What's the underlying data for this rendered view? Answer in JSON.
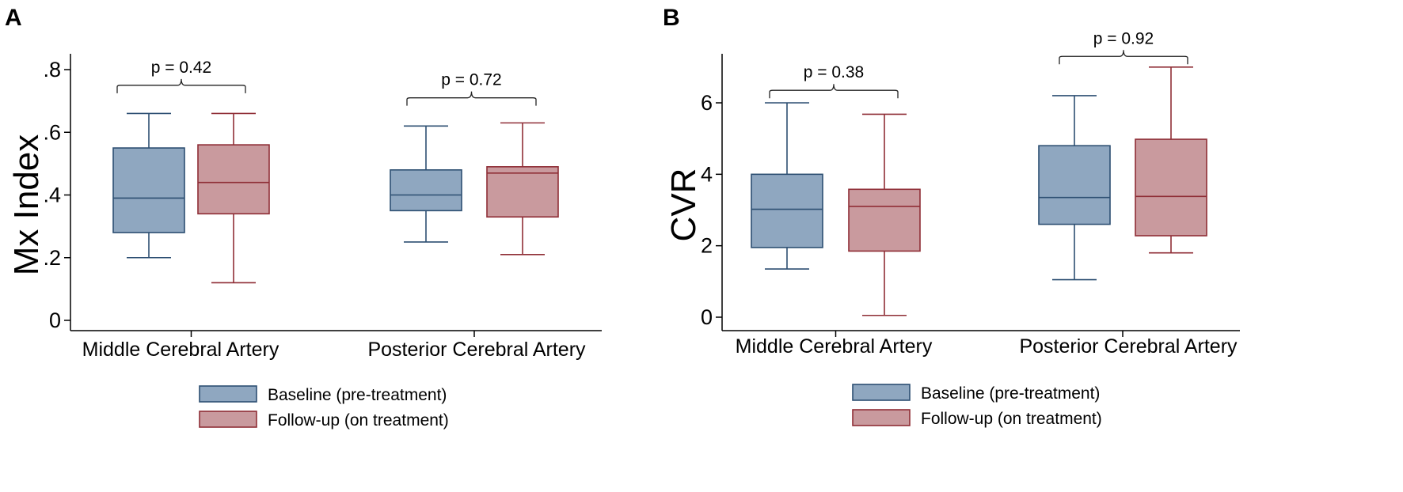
{
  "chart_data": [
    {
      "type": "boxplot",
      "panel_label": "A",
      "title": "",
      "xlabel": "",
      "ylabel": "Mx Index",
      "ylim": [
        0,
        0.85
      ],
      "yticks": [
        0,
        0.2,
        0.4,
        0.6,
        0.8
      ],
      "ytick_labels": [
        "0",
        ".2",
        ".4",
        ".6",
        ".8"
      ],
      "categories": [
        "Middle Cerebral Artery",
        "Posterior Cerebral Artery"
      ],
      "series": [
        {
          "name": "Baseline (pre-treatment)",
          "boxes": [
            {
              "min": 0.2,
              "q1": 0.28,
              "median": 0.39,
              "q3": 0.55,
              "max": 0.66
            },
            {
              "min": 0.25,
              "q1": 0.35,
              "median": 0.4,
              "q3": 0.48,
              "max": 0.62
            }
          ]
        },
        {
          "name": "Follow-up (on treatment)",
          "boxes": [
            {
              "min": 0.12,
              "q1": 0.34,
              "median": 0.44,
              "q3": 0.56,
              "max": 0.66
            },
            {
              "min": 0.21,
              "q1": 0.33,
              "median": 0.47,
              "q3": 0.49,
              "max": 0.63
            }
          ]
        }
      ],
      "annotations": [
        {
          "label": "p = 0.42",
          "category": 0,
          "y": 0.75
        },
        {
          "label": "p = 0.72",
          "category": 1,
          "y": 0.71
        }
      ]
    },
    {
      "type": "boxplot",
      "panel_label": "B",
      "title": "",
      "xlabel": "",
      "ylabel": "CVR",
      "ylim": [
        -0.3,
        7.4
      ],
      "yticks": [
        0,
        2,
        4,
        6
      ],
      "ytick_labels": [
        "0",
        "2",
        "4",
        "6"
      ],
      "categories": [
        "Middle Cerebral Artery",
        "Posterior Cerebral Artery"
      ],
      "series": [
        {
          "name": "Baseline (pre-treatment)",
          "boxes": [
            {
              "min": 1.35,
              "q1": 1.95,
              "median": 3.02,
              "q3": 4.0,
              "max": 6.0
            },
            {
              "min": 1.05,
              "q1": 2.6,
              "median": 3.35,
              "q3": 4.8,
              "max": 6.2
            }
          ]
        },
        {
          "name": "Follow-up (on treatment)",
          "boxes": [
            {
              "min": 0.05,
              "q1": 1.85,
              "median": 3.1,
              "q3": 3.58,
              "max": 5.68
            },
            {
              "min": 1.8,
              "q1": 2.28,
              "median": 3.38,
              "q3": 4.98,
              "max": 7.0
            }
          ]
        }
      ],
      "annotations": [
        {
          "label": "p = 0.38",
          "category": 0,
          "y": 6.35
        },
        {
          "label": "p = 0.92",
          "category": 1,
          "y": 7.3
        }
      ]
    }
  ],
  "legend": {
    "placement": "bottom-center",
    "items": [
      {
        "label": "Baseline (pre-treatment)",
        "fill": "#8fa7c0",
        "stroke": "#2d4f72"
      },
      {
        "label": "Follow-up (on treatment)",
        "fill": "#c99a9e",
        "stroke": "#8f2e36"
      }
    ]
  },
  "colors": {
    "baseline_fill": "#8fa7c0",
    "baseline_stroke": "#2d4f72",
    "followup_fill": "#c99a9e",
    "followup_stroke": "#8f2e36",
    "axis": "#000000"
  }
}
